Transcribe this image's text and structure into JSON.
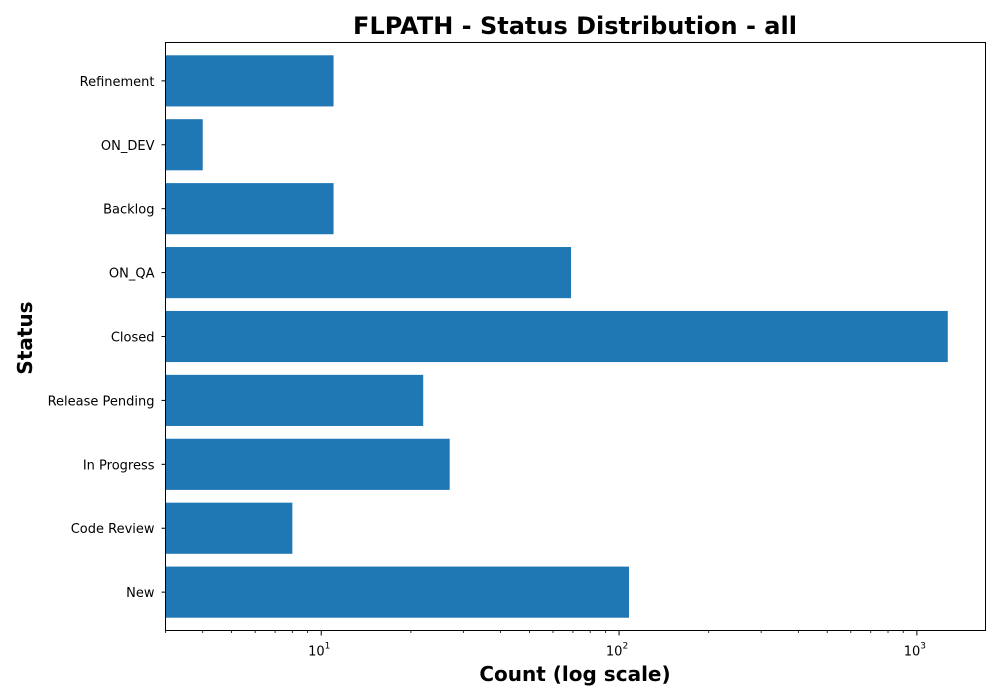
{
  "chart_data": {
    "type": "bar",
    "orientation": "horizontal",
    "title": "FLPATH - Status Distribution - all",
    "xlabel": "Count (log scale)",
    "ylabel": "Status",
    "xscale": "log",
    "xlim": [
      3,
      1700
    ],
    "categories": [
      "New",
      "Code Review",
      "In Progress",
      "Release Pending",
      "Closed",
      "ON_QA",
      "Backlog",
      "ON_DEV",
      "Refinement"
    ],
    "values": [
      108,
      8,
      27,
      22,
      1270,
      69,
      11,
      4,
      11
    ],
    "x_ticks": [
      {
        "base": "10",
        "exp": "1",
        "value": 10
      },
      {
        "base": "10",
        "exp": "2",
        "value": 100
      },
      {
        "base": "10",
        "exp": "3",
        "value": 1000
      }
    ],
    "bar_color": "#1f77b4",
    "grid": false,
    "legend": "none"
  }
}
